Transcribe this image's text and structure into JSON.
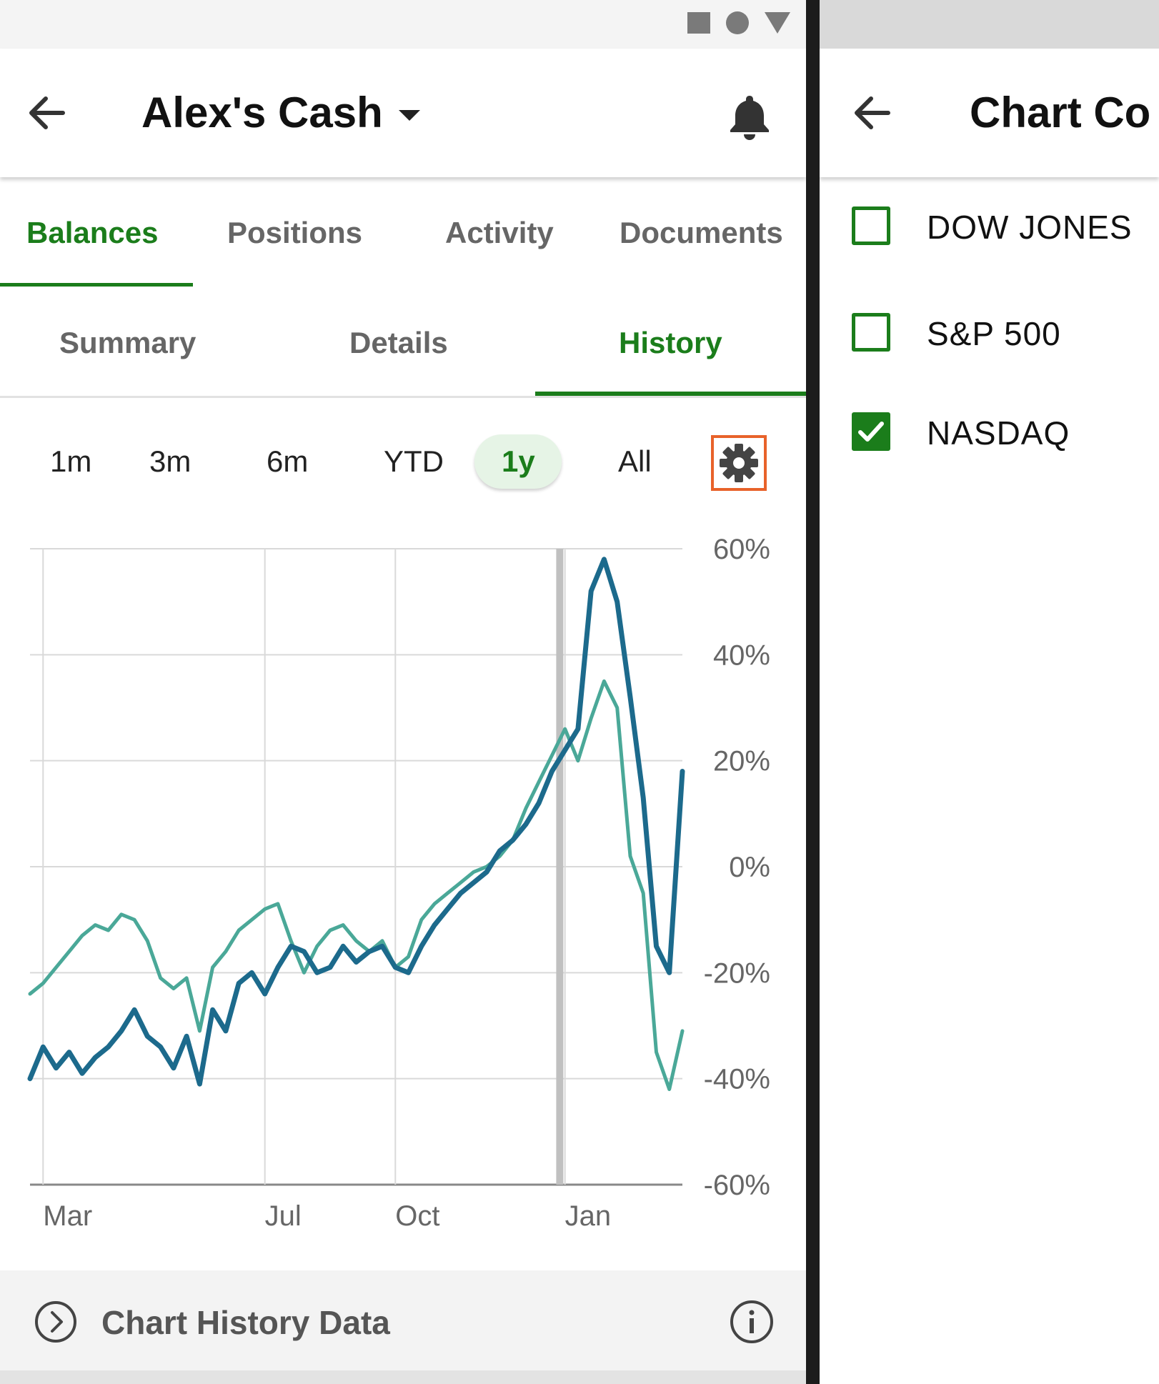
{
  "left": {
    "header": {
      "title": "Alex's Cash"
    },
    "tabs": [
      {
        "label": "Balances",
        "active": true
      },
      {
        "label": "Positions",
        "active": false
      },
      {
        "label": "Activity",
        "active": false
      },
      {
        "label": "Documents",
        "active": false
      }
    ],
    "subtabs": [
      {
        "label": "Summary",
        "active": false
      },
      {
        "label": "Details",
        "active": false
      },
      {
        "label": "History",
        "active": true
      }
    ],
    "ranges": [
      {
        "label": "1m",
        "active": false
      },
      {
        "label": "3m",
        "active": false
      },
      {
        "label": "6m",
        "active": false
      },
      {
        "label": "YTD",
        "active": false
      },
      {
        "label": "1y",
        "active": true
      },
      {
        "label": "All",
        "active": false
      }
    ],
    "footer": {
      "label": "Chart History Data"
    }
  },
  "right": {
    "header": {
      "title": "Chart Co"
    },
    "options": [
      {
        "label": "DOW JONES",
        "checked": false
      },
      {
        "label": "S&P 500",
        "checked": false
      },
      {
        "label": "NASDAQ",
        "checked": true
      }
    ]
  },
  "colors": {
    "accent": "#1b7d1b",
    "series_account": "#1c6a8c",
    "series_nasdaq": "#4aa898",
    "highlight_border": "#e8622a"
  },
  "chart_data": {
    "type": "line",
    "xlabel": "",
    "ylabel": "",
    "x_tick_labels": [
      "Mar",
      "Jul",
      "Oct",
      "Jan"
    ],
    "y_tick_labels": [
      "60%",
      "40%",
      "20%",
      "0%",
      "-20%",
      "-40%",
      "-60%"
    ],
    "ylim": [
      -60,
      60
    ],
    "x_unit": "week index (0 = Feb, 50 = Feb following year)",
    "x_ticks": [
      1,
      18,
      28,
      41
    ],
    "marker_x": 40,
    "grid": true,
    "series": [
      {
        "name": "",
        "color": "#1c6a8c",
        "x": [
          0,
          1,
          2,
          3,
          4,
          5,
          6,
          7,
          8,
          9,
          10,
          11,
          12,
          13,
          14,
          15,
          16,
          17,
          18,
          19,
          20,
          21,
          22,
          23,
          24,
          25,
          26,
          27,
          28,
          29,
          30,
          31,
          32,
          33,
          34,
          35,
          36,
          37,
          38,
          39,
          40,
          41,
          42,
          43,
          44,
          45,
          46,
          47,
          48,
          49,
          50
        ],
        "values": [
          -40,
          -34,
          -38,
          -35,
          -39,
          -36,
          -34,
          -31,
          -27,
          -32,
          -34,
          -38,
          -32,
          -41,
          -27,
          -31,
          -22,
          -20,
          -24,
          -19,
          -15,
          -16,
          -20,
          -19,
          -15,
          -18,
          -16,
          -15,
          -19,
          -20,
          -15,
          -11,
          -8,
          -5,
          -3,
          -1,
          3,
          5,
          8,
          12,
          18,
          22,
          26,
          52,
          58,
          50,
          32,
          13,
          -15,
          -20,
          18
        ]
      },
      {
        "name": "NASDAQ",
        "color": "#4aa898",
        "x": [
          0,
          1,
          2,
          3,
          4,
          5,
          6,
          7,
          8,
          9,
          10,
          11,
          12,
          13,
          14,
          15,
          16,
          17,
          18,
          19,
          20,
          21,
          22,
          23,
          24,
          25,
          26,
          27,
          28,
          29,
          30,
          31,
          32,
          33,
          34,
          35,
          36,
          37,
          38,
          39,
          40,
          41,
          42,
          43,
          44,
          45,
          46,
          47,
          48,
          49,
          50
        ],
        "values": [
          -24,
          -22,
          -19,
          -16,
          -13,
          -11,
          -12,
          -9,
          -10,
          -14,
          -21,
          -23,
          -21,
          -31,
          -19,
          -16,
          -12,
          -10,
          -8,
          -7,
          -14,
          -20,
          -15,
          -12,
          -11,
          -14,
          -16,
          -14,
          -19,
          -17,
          -10,
          -7,
          -5,
          -3,
          -1,
          0,
          2,
          5,
          11,
          16,
          21,
          26,
          20,
          28,
          35,
          30,
          2,
          -5,
          -35,
          -42,
          -31
        ]
      }
    ]
  }
}
